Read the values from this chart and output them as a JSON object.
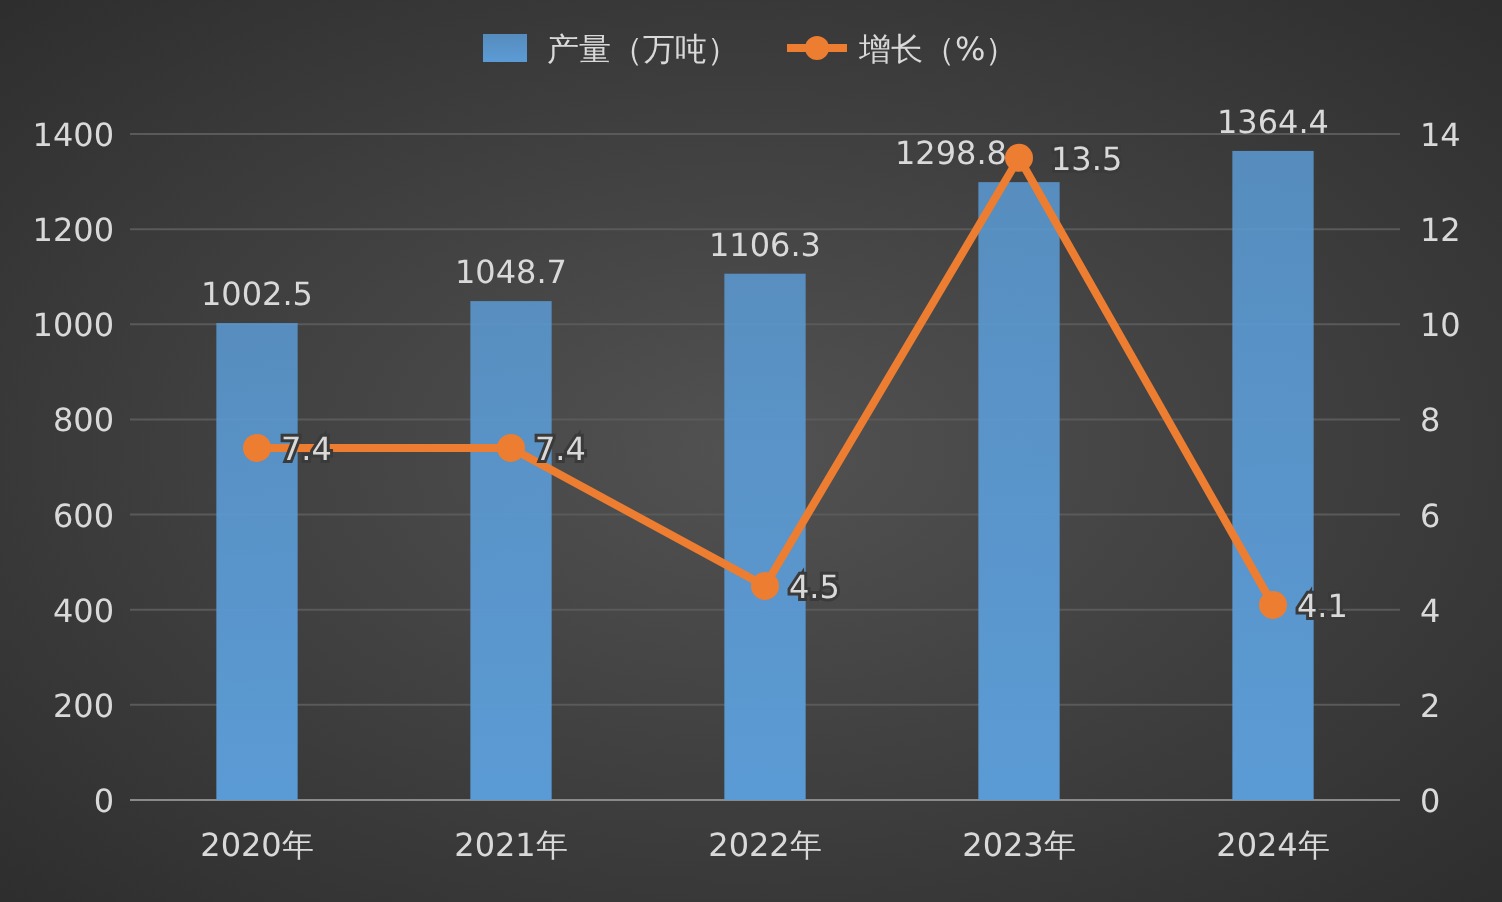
{
  "chart_data": {
    "type": "bar",
    "categories": [
      "2020年",
      "2021年",
      "2022年",
      "2023年",
      "2024年"
    ],
    "series": [
      {
        "name": "产量（万吨）",
        "color": "#5b9bd5",
        "values": [
          1002.5,
          1048.7,
          1106.3,
          1298.8,
          1364.4
        ]
      },
      {
        "name": "增长（%）",
        "type": "line",
        "axis": "y2",
        "color": "#ed7d31",
        "values": [
          7.4,
          7.4,
          4.5,
          13.5,
          4.1
        ]
      }
    ],
    "ylim": [
      0,
      1400
    ],
    "yticks": [
      0,
      200,
      400,
      600,
      800,
      1000,
      1200,
      1400
    ],
    "y2lim": [
      0,
      14
    ],
    "y2ticks": [
      0,
      2,
      4,
      6,
      8,
      10,
      12,
      14
    ],
    "grid": "y",
    "legend": "top",
    "marker": "circle",
    "data_labels": true
  }
}
